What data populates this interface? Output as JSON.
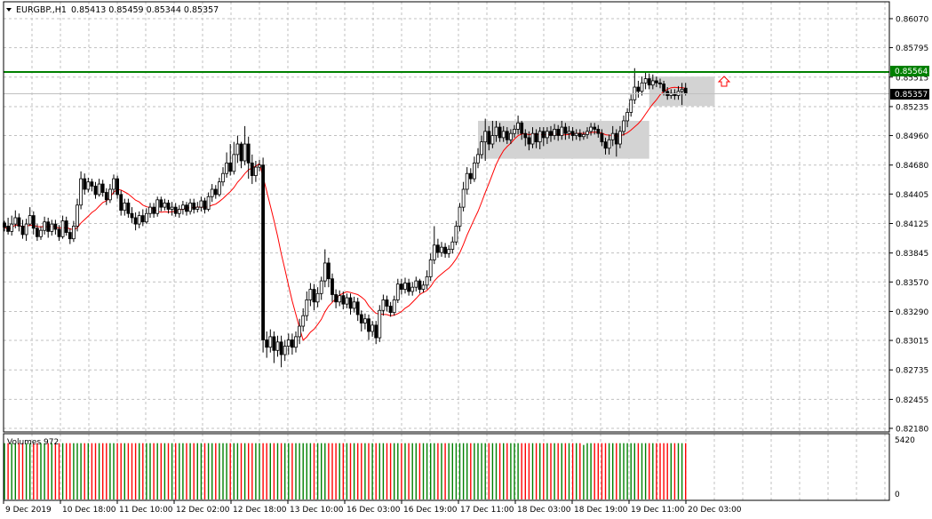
{
  "header": {
    "dropdown_icon": "triangle-down-icon",
    "symbol": "EURGBP.,H1",
    "ohlc": "0.85413 0.85459 0.85344 0.85357"
  },
  "subwindow": {
    "title": "Volumes 972",
    "scale_labels": [
      "5420",
      "0"
    ]
  },
  "levels": {
    "horizontal_line_label": "0.85564",
    "bid_label": "0.85357",
    "line_color": "#008000",
    "bid_label_bg": "#000000"
  },
  "price_axis_labels": [
    "0.86070",
    "0.85795",
    "0.85515",
    "0.85235",
    "0.84960",
    "0.84680",
    "0.84405",
    "0.84125",
    "0.83845",
    "0.83570",
    "0.83290",
    "0.83015",
    "0.82735",
    "0.82455",
    "0.82180"
  ],
  "time_axis_labels": [
    "9 Dec 2019",
    "10 Dec 18:00",
    "11 Dec 10:00",
    "12 Dec 02:00",
    "12 Dec 18:00",
    "13 Dec 10:00",
    "16 Dec 03:00",
    "16 Dec 19:00",
    "17 Dec 11:00",
    "18 Dec 03:00",
    "18 Dec 19:00",
    "19 Dec 11:00",
    "20 Dec 03:00"
  ],
  "colors": {
    "candle": "#000000",
    "ma_line": "#ff0000",
    "grid": "#c0c0c0",
    "volume_up": "#008000",
    "volume_down": "#ff0000",
    "zone_fill": "#d3d3d3",
    "arrow": "#ff0000"
  },
  "chart_data": {
    "type": "candlestick",
    "symbol": "EURGBP.",
    "timeframe": "H1",
    "price_range": [
      0.8218,
      0.8607
    ],
    "volume_range": [
      0,
      5420
    ],
    "close_path": [
      [
        0.8413,
        0.8409,
        0.8415,
        0.8405
      ],
      [
        0.841,
        0.8405,
        0.8418,
        0.8402
      ],
      [
        0.8405,
        0.8412,
        0.842,
        0.8401
      ],
      [
        0.8412,
        0.8418,
        0.8425,
        0.8408
      ],
      [
        0.8418,
        0.841,
        0.8422,
        0.8405
      ],
      [
        0.841,
        0.8402,
        0.8416,
        0.8398
      ],
      [
        0.8402,
        0.8412,
        0.8417,
        0.8396
      ],
      [
        0.8412,
        0.842,
        0.8428,
        0.841
      ],
      [
        0.842,
        0.8408,
        0.8424,
        0.8402
      ],
      [
        0.8408,
        0.84,
        0.8412,
        0.8396
      ],
      [
        0.84,
        0.8406,
        0.841,
        0.8397
      ],
      [
        0.8406,
        0.8414,
        0.8419,
        0.8402
      ],
      [
        0.8414,
        0.8405,
        0.8418,
        0.8399
      ],
      [
        0.8405,
        0.8412,
        0.8416,
        0.8401
      ],
      [
        0.8412,
        0.8407,
        0.8416,
        0.8402
      ],
      [
        0.8407,
        0.84,
        0.8411,
        0.8396
      ],
      [
        0.84,
        0.8415,
        0.842,
        0.8398
      ],
      [
        0.8415,
        0.8404,
        0.8419,
        0.8401
      ],
      [
        0.8404,
        0.8398,
        0.8408,
        0.8393
      ],
      [
        0.8398,
        0.841,
        0.8415,
        0.8395
      ],
      [
        0.841,
        0.843,
        0.8436,
        0.8405
      ],
      [
        0.843,
        0.8455,
        0.8462,
        0.8426
      ],
      [
        0.8455,
        0.8445,
        0.846,
        0.844
      ],
      [
        0.8445,
        0.8452,
        0.8456,
        0.8442
      ],
      [
        0.8452,
        0.8448,
        0.8455,
        0.8443
      ],
      [
        0.8448,
        0.844,
        0.8452,
        0.8436
      ],
      [
        0.844,
        0.845,
        0.8455,
        0.8438
      ],
      [
        0.845,
        0.8442,
        0.8454,
        0.8438
      ],
      [
        0.8442,
        0.8435,
        0.8446,
        0.843
      ],
      [
        0.8435,
        0.8445,
        0.845,
        0.8432
      ],
      [
        0.8445,
        0.8455,
        0.8459,
        0.844
      ],
      [
        0.8455,
        0.844,
        0.8458,
        0.8436
      ],
      [
        0.844,
        0.8425,
        0.8444,
        0.842
      ],
      [
        0.8425,
        0.8432,
        0.8436,
        0.842
      ],
      [
        0.8432,
        0.8422,
        0.8436,
        0.8418
      ],
      [
        0.8422,
        0.8418,
        0.8428,
        0.8413
      ],
      [
        0.8418,
        0.8412,
        0.8423,
        0.8406
      ],
      [
        0.8412,
        0.842,
        0.8424,
        0.8408
      ],
      [
        0.842,
        0.8414,
        0.8426,
        0.841
      ],
      [
        0.8414,
        0.8422,
        0.8427,
        0.8412
      ],
      [
        0.8422,
        0.8428,
        0.8432,
        0.8418
      ],
      [
        0.8428,
        0.8422,
        0.8432,
        0.8418
      ],
      [
        0.8422,
        0.8435,
        0.8438,
        0.8419
      ],
      [
        0.8435,
        0.8428,
        0.8438,
        0.8424
      ],
      [
        0.8428,
        0.8432,
        0.8436,
        0.8425
      ],
      [
        0.8432,
        0.8426,
        0.8435,
        0.8422
      ],
      [
        0.8426,
        0.8428,
        0.8433,
        0.842
      ],
      [
        0.8428,
        0.8422,
        0.8432,
        0.8419
      ],
      [
        0.8422,
        0.8426,
        0.843,
        0.8418
      ],
      [
        0.8426,
        0.843,
        0.8434,
        0.8421
      ],
      [
        0.843,
        0.8424,
        0.8433,
        0.842
      ],
      [
        0.8424,
        0.8432,
        0.8436,
        0.8421
      ],
      [
        0.8432,
        0.8426,
        0.8436,
        0.8422
      ],
      [
        0.8426,
        0.8428,
        0.8433,
        0.8423
      ],
      [
        0.8428,
        0.8434,
        0.8438,
        0.8424
      ],
      [
        0.8434,
        0.8426,
        0.8437,
        0.8422
      ],
      [
        0.8426,
        0.8438,
        0.8442,
        0.8424
      ],
      [
        0.8438,
        0.8445,
        0.845,
        0.8433
      ],
      [
        0.8445,
        0.844,
        0.8449,
        0.8436
      ],
      [
        0.844,
        0.8452,
        0.8456,
        0.8438
      ],
      [
        0.8452,
        0.846,
        0.8466,
        0.8448
      ],
      [
        0.846,
        0.847,
        0.848,
        0.8456
      ],
      [
        0.847,
        0.8462,
        0.8488,
        0.8458
      ],
      [
        0.8462,
        0.8478,
        0.849,
        0.8459
      ],
      [
        0.8478,
        0.8488,
        0.8496,
        0.847
      ],
      [
        0.8488,
        0.8472,
        0.849,
        0.8465
      ],
      [
        0.8472,
        0.8488,
        0.8505,
        0.8468
      ],
      [
        0.8488,
        0.847,
        0.8495,
        0.8455
      ],
      [
        0.847,
        0.8458,
        0.8478,
        0.845
      ],
      [
        0.8458,
        0.8466,
        0.8472,
        0.8452
      ],
      [
        0.8466,
        0.8468,
        0.8473,
        0.8462
      ],
      [
        0.8468,
        0.8302,
        0.8475,
        0.829
      ],
      [
        0.8302,
        0.8295,
        0.831,
        0.8285
      ],
      [
        0.8295,
        0.8305,
        0.8312,
        0.829
      ],
      [
        0.8305,
        0.8292,
        0.831,
        0.828
      ],
      [
        0.8292,
        0.83,
        0.8306,
        0.8286
      ],
      [
        0.83,
        0.8288,
        0.8306,
        0.8276
      ],
      [
        0.8288,
        0.8296,
        0.8302,
        0.8282
      ],
      [
        0.8296,
        0.8302,
        0.8308,
        0.8288
      ],
      [
        0.8302,
        0.8295,
        0.8308,
        0.8288
      ],
      [
        0.8295,
        0.8305,
        0.831,
        0.829
      ],
      [
        0.8305,
        0.8315,
        0.8322,
        0.8298
      ],
      [
        0.8315,
        0.8325,
        0.8332,
        0.831
      ],
      [
        0.8325,
        0.834,
        0.8348,
        0.832
      ],
      [
        0.834,
        0.835,
        0.8356,
        0.8334
      ],
      [
        0.835,
        0.8338,
        0.8355,
        0.833
      ],
      [
        0.8338,
        0.8346,
        0.8352,
        0.8333
      ],
      [
        0.8346,
        0.8358,
        0.8362,
        0.834
      ],
      [
        0.8358,
        0.8375,
        0.8388,
        0.8352
      ],
      [
        0.8375,
        0.836,
        0.838,
        0.8352
      ],
      [
        0.836,
        0.8345,
        0.8365,
        0.8338
      ],
      [
        0.8345,
        0.8338,
        0.835,
        0.8332
      ],
      [
        0.8338,
        0.8344,
        0.8349,
        0.8334
      ],
      [
        0.8344,
        0.8336,
        0.8348,
        0.8331
      ],
      [
        0.8336,
        0.8342,
        0.8346,
        0.8332
      ],
      [
        0.8342,
        0.8332,
        0.8346,
        0.8326
      ],
      [
        0.8332,
        0.8338,
        0.8343,
        0.8328
      ],
      [
        0.8338,
        0.8326,
        0.8342,
        0.832
      ],
      [
        0.8326,
        0.8318,
        0.833,
        0.831
      ],
      [
        0.8318,
        0.8322,
        0.8327,
        0.8312
      ],
      [
        0.8322,
        0.831,
        0.8326,
        0.8302
      ],
      [
        0.831,
        0.8316,
        0.832,
        0.8305
      ],
      [
        0.8316,
        0.8304,
        0.832,
        0.8298
      ],
      [
        0.8304,
        0.833,
        0.8335,
        0.83
      ],
      [
        0.833,
        0.834,
        0.8345,
        0.8325
      ],
      [
        0.834,
        0.8334,
        0.8344,
        0.8329
      ],
      [
        0.8334,
        0.8328,
        0.8338,
        0.8324
      ],
      [
        0.8328,
        0.834,
        0.8344,
        0.8325
      ],
      [
        0.834,
        0.8355,
        0.836,
        0.8337
      ],
      [
        0.8355,
        0.835,
        0.836,
        0.8345
      ],
      [
        0.835,
        0.8356,
        0.8361,
        0.8346
      ],
      [
        0.8356,
        0.8348,
        0.836,
        0.8344
      ],
      [
        0.8348,
        0.8352,
        0.8357,
        0.8344
      ],
      [
        0.8352,
        0.8358,
        0.8362,
        0.8348
      ],
      [
        0.8358,
        0.835,
        0.836,
        0.8346
      ],
      [
        0.835,
        0.8354,
        0.8358,
        0.8347
      ],
      [
        0.8354,
        0.8362,
        0.8368,
        0.835
      ],
      [
        0.8362,
        0.8378,
        0.8384,
        0.8358
      ],
      [
        0.8378,
        0.8392,
        0.841,
        0.8374
      ],
      [
        0.8392,
        0.8385,
        0.8398,
        0.838
      ],
      [
        0.8385,
        0.839,
        0.8395,
        0.8381
      ],
      [
        0.839,
        0.8384,
        0.8394,
        0.838
      ],
      [
        0.8384,
        0.8388,
        0.8392,
        0.838
      ],
      [
        0.8388,
        0.8395,
        0.84,
        0.8384
      ],
      [
        0.8395,
        0.841,
        0.8415,
        0.8392
      ],
      [
        0.841,
        0.8428,
        0.8432,
        0.8405
      ],
      [
        0.8428,
        0.8445,
        0.8452,
        0.8424
      ],
      [
        0.8445,
        0.846,
        0.8466,
        0.844
      ],
      [
        0.846,
        0.8455,
        0.8465,
        0.845
      ],
      [
        0.8455,
        0.847,
        0.8476,
        0.8452
      ],
      [
        0.847,
        0.8478,
        0.8484,
        0.8465
      ],
      [
        0.8478,
        0.849,
        0.8496,
        0.8474
      ],
      [
        0.849,
        0.85,
        0.8512,
        0.8472
      ],
      [
        0.85,
        0.8488,
        0.8505,
        0.8482
      ],
      [
        0.8488,
        0.8496,
        0.851,
        0.8484
      ],
      [
        0.8496,
        0.8504,
        0.851,
        0.849
      ],
      [
        0.8504,
        0.8494,
        0.8508,
        0.849
      ],
      [
        0.8494,
        0.85,
        0.8505,
        0.849
      ],
      [
        0.85,
        0.8492,
        0.8504,
        0.8488
      ],
      [
        0.8492,
        0.8498,
        0.8502,
        0.8488
      ],
      [
        0.8498,
        0.8502,
        0.8506,
        0.8494
      ],
      [
        0.8502,
        0.8508,
        0.8515,
        0.8497
      ],
      [
        0.8508,
        0.8498,
        0.851,
        0.8492
      ],
      [
        0.8498,
        0.8494,
        0.8502,
        0.8486
      ],
      [
        0.8494,
        0.8488,
        0.85,
        0.8482
      ],
      [
        0.8488,
        0.8498,
        0.8504,
        0.8484
      ],
      [
        0.8498,
        0.849,
        0.8502,
        0.8484
      ],
      [
        0.849,
        0.85,
        0.8504,
        0.8483
      ],
      [
        0.85,
        0.8494,
        0.8504,
        0.8486
      ],
      [
        0.8494,
        0.85,
        0.8504,
        0.8488
      ],
      [
        0.85,
        0.8496,
        0.8505,
        0.849
      ],
      [
        0.8496,
        0.8502,
        0.8507,
        0.8492
      ],
      [
        0.8502,
        0.8496,
        0.8506,
        0.8491
      ],
      [
        0.8496,
        0.8504,
        0.851,
        0.8492
      ],
      [
        0.8504,
        0.8498,
        0.8508,
        0.8492
      ],
      [
        0.8498,
        0.85,
        0.8505,
        0.8493
      ],
      [
        0.85,
        0.8496,
        0.8504,
        0.8491
      ],
      [
        0.8496,
        0.8498,
        0.8502,
        0.8492
      ],
      [
        0.8498,
        0.8495,
        0.8502,
        0.8491
      ],
      [
        0.8495,
        0.8497,
        0.85,
        0.8492
      ],
      [
        0.8497,
        0.85,
        0.8504,
        0.8493
      ],
      [
        0.85,
        0.8504,
        0.8508,
        0.8496
      ],
      [
        0.8504,
        0.8502,
        0.8508,
        0.8497
      ],
      [
        0.8502,
        0.8498,
        0.8506,
        0.8494
      ],
      [
        0.8498,
        0.849,
        0.8502,
        0.8486
      ],
      [
        0.849,
        0.8484,
        0.8494,
        0.8478
      ],
      [
        0.8484,
        0.8492,
        0.8497,
        0.8478
      ],
      [
        0.8492,
        0.8498,
        0.8505,
        0.8486
      ],
      [
        0.8498,
        0.8488,
        0.8502,
        0.8476
      ],
      [
        0.8488,
        0.85,
        0.8505,
        0.8484
      ],
      [
        0.85,
        0.851,
        0.8515,
        0.8496
      ],
      [
        0.851,
        0.8518,
        0.8522,
        0.8504
      ],
      [
        0.8518,
        0.853,
        0.8535,
        0.8514
      ],
      [
        0.853,
        0.8542,
        0.856,
        0.8526
      ],
      [
        0.8542,
        0.8538,
        0.8548,
        0.8532
      ],
      [
        0.8538,
        0.8546,
        0.8552,
        0.8534
      ],
      [
        0.8546,
        0.855,
        0.8556,
        0.854
      ],
      [
        0.855,
        0.8544,
        0.8555,
        0.854
      ],
      [
        0.8544,
        0.8548,
        0.8554,
        0.854
      ],
      [
        0.8548,
        0.8546,
        0.8552,
        0.8542
      ],
      [
        0.8546,
        0.8545,
        0.855,
        0.8541
      ],
      [
        0.8545,
        0.8538,
        0.8548,
        0.8534
      ],
      [
        0.8538,
        0.8534,
        0.8542,
        0.853
      ],
      [
        0.8534,
        0.8536,
        0.854,
        0.8531
      ],
      [
        0.8536,
        0.8534,
        0.854,
        0.853
      ],
      [
        0.8534,
        0.8538,
        0.8543,
        0.853
      ],
      [
        0.8538,
        0.854,
        0.8546,
        0.8525
      ],
      [
        0.8541,
        0.8536,
        0.8546,
        0.8534
      ]
    ]
  }
}
